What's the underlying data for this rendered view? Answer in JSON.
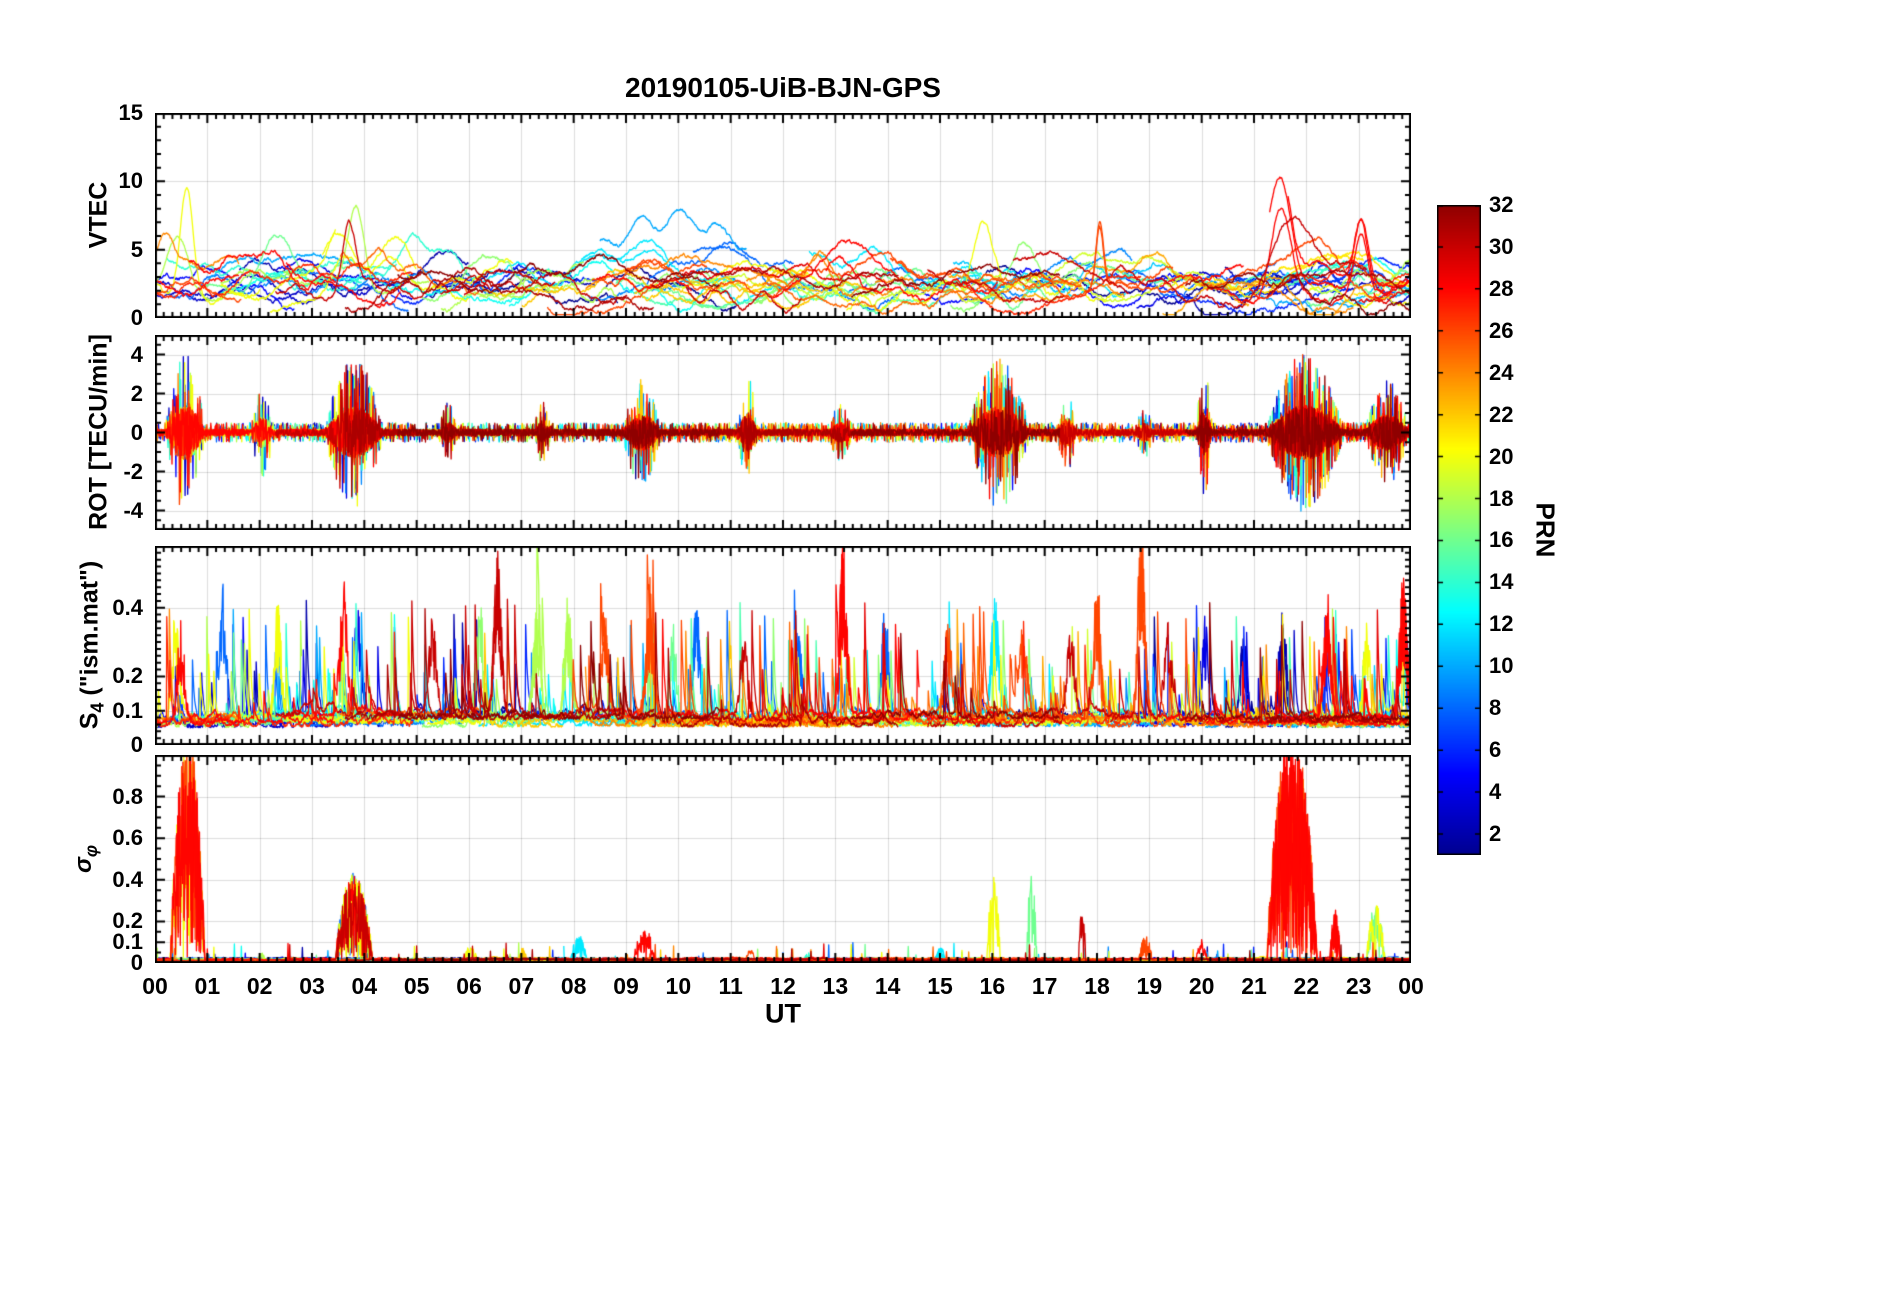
{
  "chart_data": {
    "type": "line",
    "title": "20190105-UiB-BJN-GPS",
    "xlabel": "UT",
    "x_range": [
      0,
      24
    ],
    "x_tick_labels": [
      "00",
      "01",
      "02",
      "03",
      "04",
      "05",
      "06",
      "07",
      "08",
      "09",
      "10",
      "11",
      "12",
      "13",
      "14",
      "15",
      "16",
      "17",
      "18",
      "19",
      "20",
      "21",
      "22",
      "23",
      "00"
    ],
    "seed": 20190105,
    "prn_range": [
      1,
      32
    ],
    "grid": true,
    "colorbar": {
      "label": "PRN",
      "vmin": 1,
      "vmax": 32,
      "tick_values": [
        2,
        4,
        6,
        8,
        10,
        12,
        14,
        16,
        18,
        20,
        22,
        24,
        26,
        28,
        30,
        32
      ],
      "jet_positions": [
        0,
        0.125,
        0.375,
        0.625,
        0.875,
        1
      ],
      "jet_colors": [
        "#00008F",
        "#0000FF",
        "#00FFFF",
        "#FFFF00",
        "#FF0000",
        "#8F0000"
      ]
    },
    "panels": [
      {
        "id": "vtec",
        "ylabel": "VTEC",
        "ylim": [
          0,
          15
        ],
        "yticks": [
          0,
          5,
          10,
          15
        ],
        "minor_step": 1,
        "features": [
          [
            20,
            0.6,
            7.2,
            0.12
          ],
          [
            18,
            0.45,
            4.0,
            0.2
          ],
          [
            24,
            0.2,
            3.0,
            0.15
          ],
          [
            16,
            2.3,
            3.2,
            0.3
          ],
          [
            28,
            2.05,
            2.2,
            0.4
          ],
          [
            30,
            3.7,
            4.5,
            0.12
          ],
          [
            18,
            3.85,
            6.0,
            0.16
          ],
          [
            20,
            3.6,
            3.5,
            0.25
          ],
          [
            20,
            4.6,
            2.6,
            0.3
          ],
          [
            14,
            5.1,
            1.8,
            0.4
          ],
          [
            2,
            6.6,
            1.5,
            0.8
          ],
          [
            10,
            9.9,
            3.8,
            1.5
          ],
          [
            8,
            10.8,
            3.0,
            1.1
          ],
          [
            12,
            9.0,
            1.8,
            0.9
          ],
          [
            24,
            12.7,
            2.4,
            0.25
          ],
          [
            28,
            13.2,
            2.8,
            0.35
          ],
          [
            12,
            13.9,
            2.0,
            0.4
          ],
          [
            20,
            15.8,
            4.0,
            0.18
          ],
          [
            17,
            16.6,
            3.4,
            0.2
          ],
          [
            26,
            18.05,
            4.5,
            0.07
          ],
          [
            28,
            21.5,
            7.0,
            0.2
          ],
          [
            30,
            21.75,
            4.5,
            0.35
          ],
          [
            26,
            22.15,
            3.0,
            0.4
          ],
          [
            28,
            23.05,
            4.3,
            0.12
          ]
        ]
      },
      {
        "id": "rot",
        "ylabel": "ROT [TECU/min]",
        "ylim": [
          -5,
          5
        ],
        "yticks": [
          -4,
          -2,
          0,
          2,
          4
        ],
        "minor_step": 0.5,
        "bursts": [
          [
            0.2,
            0.95,
            3.6
          ],
          [
            1.85,
            2.25,
            1.8
          ],
          [
            3.25,
            4.35,
            3.4
          ],
          [
            5.45,
            5.75,
            1.1
          ],
          [
            7.25,
            7.55,
            1.1
          ],
          [
            8.95,
            9.65,
            2.3
          ],
          [
            11.15,
            11.5,
            2.5
          ],
          [
            12.9,
            13.3,
            1.0
          ],
          [
            15.55,
            16.7,
            3.4
          ],
          [
            17.25,
            17.6,
            1.7
          ],
          [
            18.75,
            19.05,
            1.0
          ],
          [
            19.9,
            20.2,
            3.0
          ],
          [
            21.25,
            22.7,
            3.6
          ],
          [
            23.15,
            23.95,
            2.2
          ]
        ]
      },
      {
        "id": "s4",
        "ylabel": {
          "main": "S",
          "sub": "4",
          "rest": " (\"ism.mat\")"
        },
        "ylim": [
          0,
          0.58
        ],
        "yticks": [
          0,
          0.1,
          0.2,
          0.4
        ],
        "minor_step": 0.02,
        "events": [
          [
            0.4,
            20,
            0.33
          ],
          [
            0.5,
            28,
            0.3
          ],
          [
            1.3,
            8,
            0.38
          ],
          [
            2.35,
            20,
            0.36
          ],
          [
            3.6,
            28,
            0.38
          ],
          [
            3.9,
            4,
            0.3
          ],
          [
            5.3,
            30,
            0.3
          ],
          [
            6.2,
            17,
            0.42
          ],
          [
            6.55,
            30,
            0.48
          ],
          [
            7.3,
            18,
            0.33
          ],
          [
            7.9,
            18,
            0.32
          ],
          [
            8.6,
            26,
            0.3
          ],
          [
            9.45,
            26,
            0.34
          ],
          [
            9.9,
            16,
            0.3
          ],
          [
            10.35,
            8,
            0.33
          ],
          [
            11.25,
            30,
            0.27
          ],
          [
            12.3,
            8,
            0.25
          ],
          [
            13.15,
            28,
            0.5
          ],
          [
            13.95,
            8,
            0.33
          ],
          [
            15.15,
            26,
            0.3
          ],
          [
            16.05,
            12,
            0.37
          ],
          [
            16.6,
            26,
            0.28
          ],
          [
            17.5,
            30,
            0.3
          ],
          [
            18.0,
            26,
            0.4
          ],
          [
            18.85,
            26,
            0.6
          ],
          [
            19.35,
            30,
            0.3
          ],
          [
            20.05,
            4,
            0.33
          ],
          [
            20.8,
            2,
            0.25
          ],
          [
            21.55,
            2,
            0.32
          ],
          [
            22.4,
            28,
            0.35
          ],
          [
            23.15,
            20,
            0.3
          ],
          [
            23.85,
            28,
            0.42
          ]
        ]
      },
      {
        "id": "sigma_phi",
        "ylabel": {
          "main": "σ",
          "sub": "φ"
        },
        "ylim": [
          0,
          1.0
        ],
        "yticks": [
          0,
          0.1,
          0.2,
          0.4,
          0.6,
          0.8
        ],
        "minor_step": 0.05,
        "events": [
          [
            0.3,
            0.95,
            [
              26,
              28,
              20
            ],
            1.1
          ],
          [
            1.95,
            2.1,
            [
              18
            ],
            0.05
          ],
          [
            3.45,
            4.15,
            [
              18,
              20,
              28,
              30,
              8
            ],
            0.42
          ],
          [
            5.9,
            6.15,
            [
              20
            ],
            0.06
          ],
          [
            6.95,
            7.1,
            [
              22
            ],
            0.05
          ],
          [
            7.95,
            8.25,
            [
              12
            ],
            0.12
          ],
          [
            9.15,
            9.55,
            [
              28
            ],
            0.15
          ],
          [
            11.3,
            11.45,
            [
              26
            ],
            0.05
          ],
          [
            12.4,
            12.55,
            [
              14
            ],
            0.05
          ],
          [
            14.9,
            15.1,
            [
              12
            ],
            0.06
          ],
          [
            15.9,
            16.15,
            [
              20
            ],
            0.4
          ],
          [
            16.65,
            16.85,
            [
              16
            ],
            0.43
          ],
          [
            17.65,
            17.78,
            [
              30
            ],
            0.37
          ],
          [
            18.8,
            19.05,
            [
              26
            ],
            0.12
          ],
          [
            19.9,
            20.1,
            [
              28
            ],
            0.1
          ],
          [
            21.25,
            22.2,
            [
              26,
              28,
              24
            ],
            1.1
          ],
          [
            22.45,
            22.65,
            [
              28
            ],
            0.25
          ],
          [
            23.15,
            23.5,
            [
              16,
              20
            ],
            0.27
          ]
        ]
      }
    ]
  }
}
